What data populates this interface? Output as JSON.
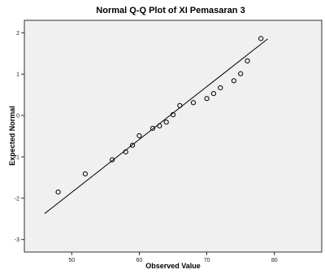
{
  "chart_data": {
    "type": "scatter",
    "title": "Normal Q-Q Plot of XI Pemasaran 3",
    "xlabel": "Observed Value",
    "ylabel": "Expected Normal",
    "xlim": [
      43,
      87
    ],
    "ylim": [
      -3.3,
      2.3
    ],
    "xticks": [
      "50",
      "60",
      "70",
      "80"
    ],
    "yticks": [
      "2",
      "1",
      "0",
      "-1",
      "-2",
      "-3"
    ],
    "grid": false,
    "points": [
      {
        "x": 48,
        "y": -1.85
      },
      {
        "x": 52,
        "y": -1.41
      },
      {
        "x": 56,
        "y": -1.07
      },
      {
        "x": 58,
        "y": -0.88
      },
      {
        "x": 59,
        "y": -0.72
      },
      {
        "x": 60,
        "y": -0.49
      },
      {
        "x": 62,
        "y": -0.31
      },
      {
        "x": 63,
        "y": -0.25
      },
      {
        "x": 64,
        "y": -0.16
      },
      {
        "x": 65,
        "y": 0.02
      },
      {
        "x": 66,
        "y": 0.24
      },
      {
        "x": 68,
        "y": 0.31
      },
      {
        "x": 70,
        "y": 0.41
      },
      {
        "x": 71,
        "y": 0.53
      },
      {
        "x": 72,
        "y": 0.67
      },
      {
        "x": 74,
        "y": 0.84
      },
      {
        "x": 75,
        "y": 1.01
      },
      {
        "x": 76,
        "y": 1.32
      },
      {
        "x": 78,
        "y": 1.86
      }
    ],
    "reference_line": {
      "x": [
        46,
        79
      ],
      "y": [
        -2.37,
        1.85
      ]
    },
    "colors": {
      "plot_background": "#f0f0f0",
      "marker": "#000000",
      "line": "#000000"
    }
  }
}
